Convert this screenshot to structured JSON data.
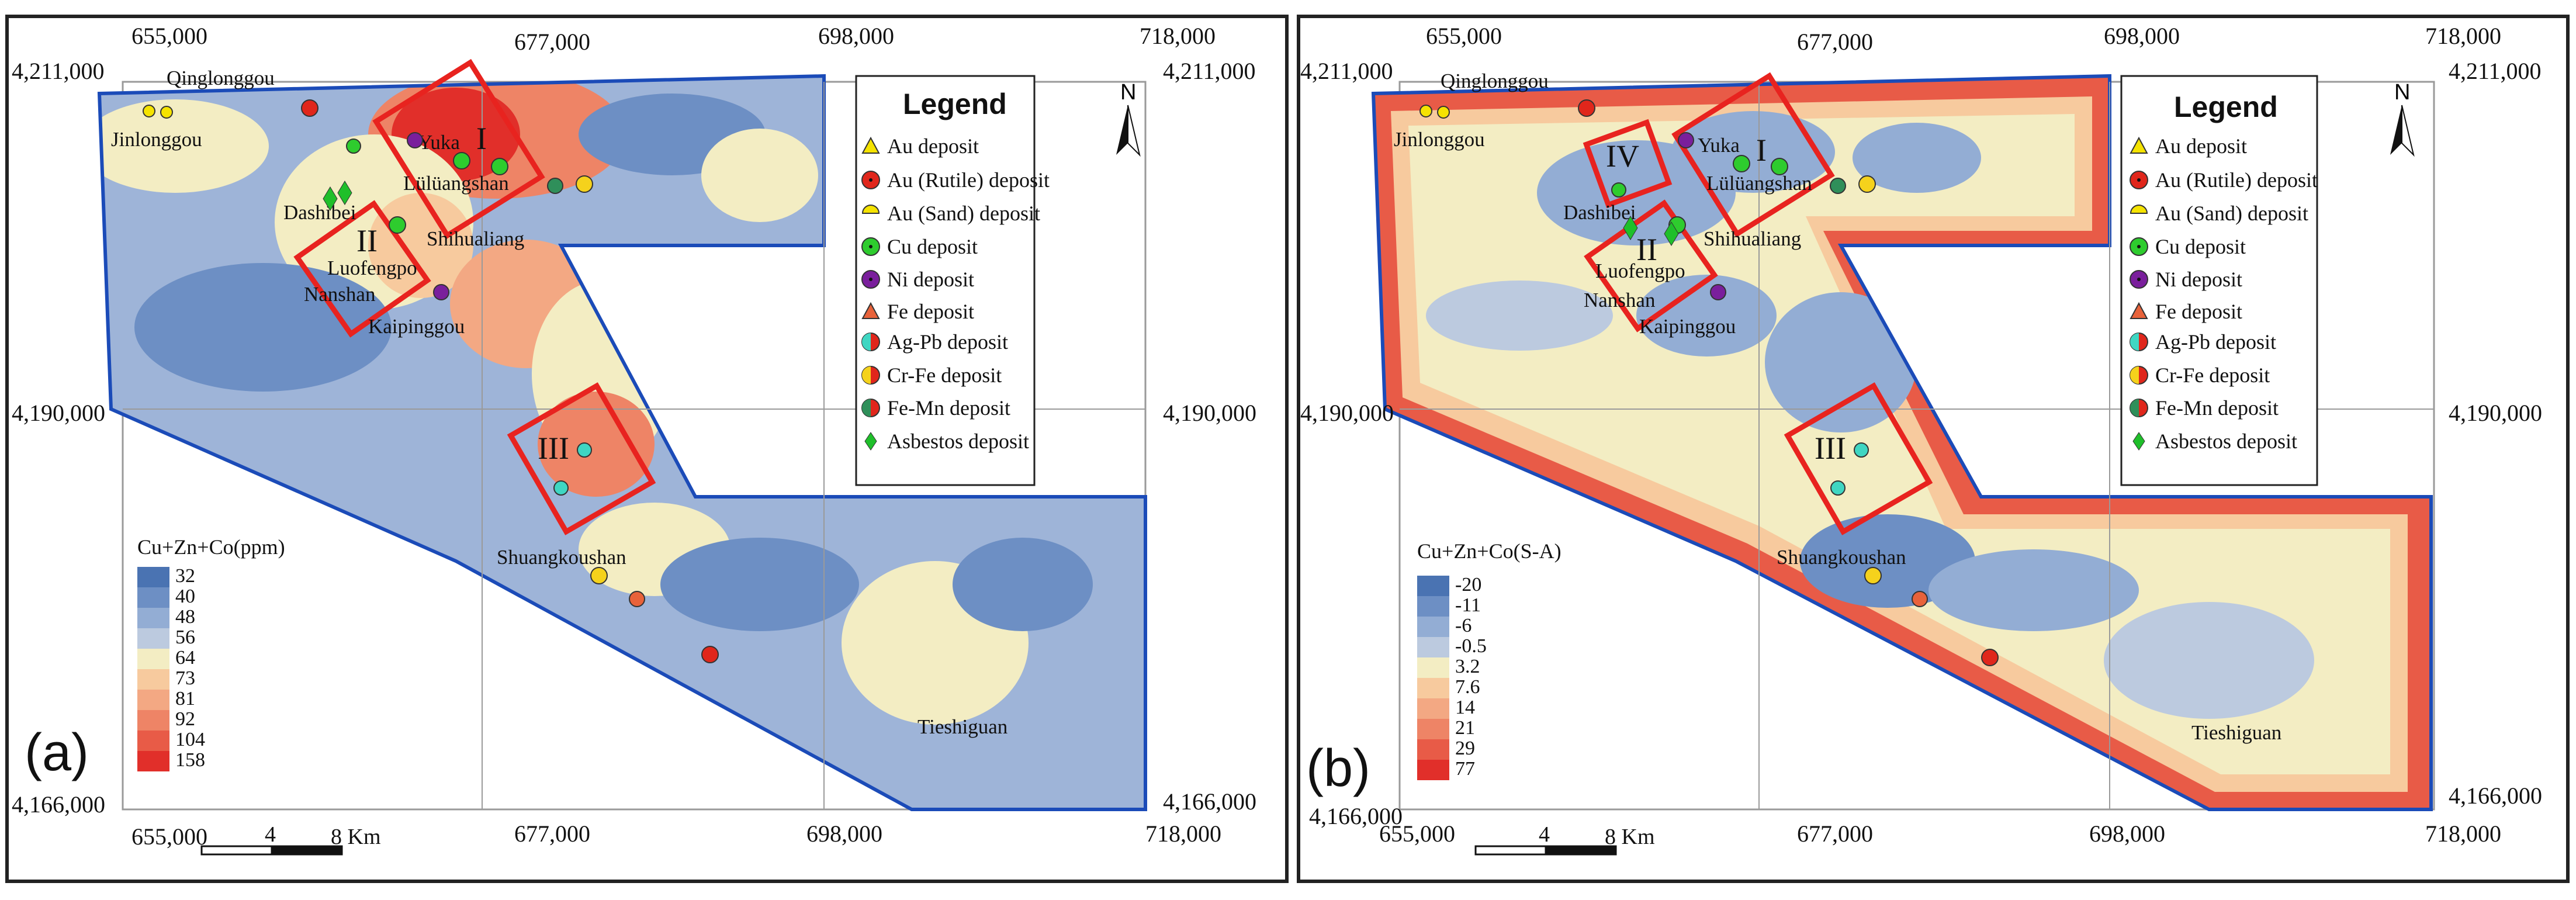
{
  "panels": [
    {
      "id": "a",
      "label": "(a)",
      "x_ticks_top": [
        "655,000",
        "677,000",
        "698,000",
        "718,000"
      ],
      "x_ticks_bottom": [
        "655,000",
        "677,000",
        "698,000",
        "718,000"
      ],
      "y_ticks_left": [
        "4,211,000",
        "4,190,000",
        "4,166,000"
      ],
      "y_ticks_right": [
        "4,211,000",
        "4,190,000",
        "4,166,000"
      ],
      "places": [
        "Qinglonggou",
        "Jinlonggou",
        "Yuka",
        "Lülüangshan",
        "Dashibei",
        "Shihualiang",
        "Luofengpo",
        "Nanshan",
        "Kaipinggou",
        "Shuangkoushan",
        "Tieshiguan"
      ],
      "zones": [
        "I",
        "II",
        "III"
      ],
      "colorbar": {
        "title": "Cu+Zn+Co(ppm)",
        "labels": [
          "32",
          "40",
          "48",
          "56",
          "64",
          "73",
          "81",
          "92",
          "104",
          "158"
        ],
        "colors": [
          "#4a73b2",
          "#6d8fc4",
          "#93add4",
          "#bccadf",
          "#f3edc3",
          "#f7ca9e",
          "#f3a883",
          "#ee8466",
          "#e85b47",
          "#e12f2a"
        ]
      },
      "scale": {
        "tick_4": "4",
        "tick_8": "8 Km"
      }
    },
    {
      "id": "b",
      "label": "(b)",
      "x_ticks_top": [
        "655,000",
        "677,000",
        "698,000",
        "718,000"
      ],
      "x_ticks_bottom": [
        "655,000",
        "677,000",
        "698,000",
        "718,000"
      ],
      "y_ticks_left": [
        "4,211,000",
        "4,190,000",
        "4,166,000"
      ],
      "y_ticks_right": [
        "4,211,000",
        "4,190,000",
        "4,166,000"
      ],
      "places": [
        "Qinglonggou",
        "Jinlonggou",
        "Yuka",
        "Lülüangshan",
        "Dashibei",
        "Shihualiang",
        "Luofengpo",
        "Nanshan",
        "Kaipinggou",
        "Shuangkoushan",
        "Tieshiguan"
      ],
      "zones": [
        "I",
        "II",
        "III",
        "IV"
      ],
      "colorbar": {
        "title": "Cu+Zn+Co(S-A)",
        "labels": [
          "-20",
          "-11",
          "-6",
          "-0.5",
          "3.2",
          "7.6",
          "14",
          "21",
          "29",
          "77"
        ],
        "colors": [
          "#4a73b2",
          "#6d8fc4",
          "#93add4",
          "#bccadf",
          "#f3edc3",
          "#f7ca9e",
          "#f3a883",
          "#ee8466",
          "#e85b47",
          "#e12f2a"
        ]
      },
      "scale": {
        "tick_4": "4",
        "tick_8": "8 Km"
      }
    }
  ],
  "legend": {
    "title": "Legend",
    "north_label": "N",
    "items": [
      {
        "label": "Au deposit",
        "icon": "au-triangle-icon",
        "color": "#f5e300"
      },
      {
        "label": "Au (Rutile) deposit",
        "icon": "au-rutile-icon",
        "color": "#e0261b"
      },
      {
        "label": "Au (Sand) deposit",
        "icon": "au-sand-icon",
        "color": "#f5e300"
      },
      {
        "label": "Cu deposit",
        "icon": "cu-deposit-icon",
        "color": "#2ecc2e"
      },
      {
        "label": "Ni deposit",
        "icon": "ni-deposit-icon",
        "color": "#7a1f9c"
      },
      {
        "label": "Fe deposit",
        "icon": "fe-deposit-icon",
        "color": "#e8623a"
      },
      {
        "label": "Ag-Pb deposit",
        "icon": "ag-pb-deposit-icon",
        "color": "#3fd6c2"
      },
      {
        "label": "Cr-Fe deposit",
        "icon": "cr-fe-deposit-icon",
        "color": "#f5d21c"
      },
      {
        "label": "Fe-Mn deposit",
        "icon": "fe-mn-deposit-icon",
        "color": "#2f8f5a"
      },
      {
        "label": "Asbestos deposit",
        "icon": "asbestos-deposit-icon",
        "color": "#1fbf2a"
      }
    ]
  },
  "colors": {
    "boundary": "#1b4bb8",
    "zone_box": "#e8231f",
    "frame": "#222222",
    "grid": "#9a9a9a"
  }
}
